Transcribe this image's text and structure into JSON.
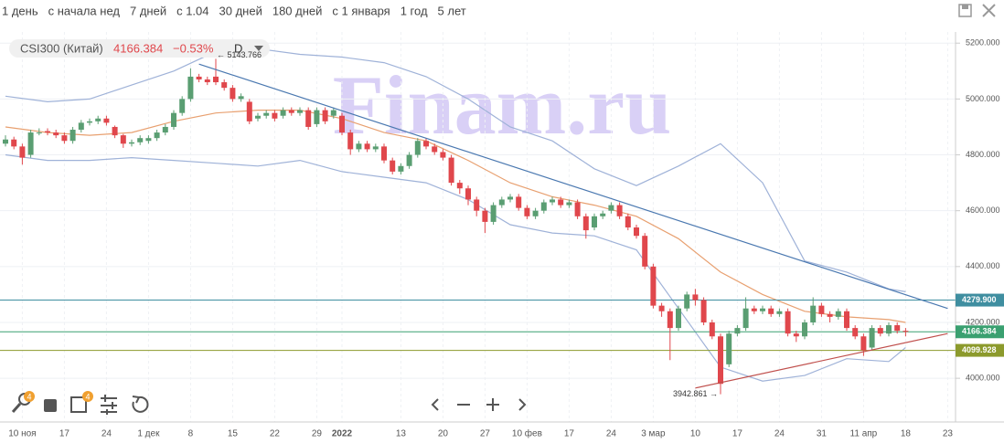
{
  "toolbar": {
    "periods": [
      "1 день",
      "с начала нед",
      "7 дней",
      "с 1.04",
      "30 дней",
      "180 дней",
      "с 1 января",
      "1 год",
      "5 лет"
    ],
    "badges": [
      "4",
      "4"
    ]
  },
  "legend": {
    "symbol": "CSI300 (Китай)",
    "price": "4166.384",
    "change": "−0.53%",
    "interval": "D"
  },
  "watermark": "Finam.ru",
  "chart_data": {
    "type": "candlestick",
    "categories": [
      null,
      null,
      "10 ноя",
      null,
      null,
      null,
      null,
      "17",
      null,
      null,
      null,
      null,
      "24",
      null,
      null,
      null,
      null,
      "1 дек",
      null,
      null,
      null,
      null,
      "8",
      null,
      null,
      null,
      null,
      "15",
      null,
      null,
      null,
      null,
      "22",
      null,
      null,
      null,
      null,
      "29",
      null,
      null,
      "2022",
      null,
      null,
      null,
      null,
      null,
      null,
      "13",
      null,
      null,
      null,
      null,
      "20",
      null,
      null,
      null,
      null,
      "27",
      null,
      null,
      null,
      null,
      "10 фев",
      null,
      null,
      null,
      null,
      "17",
      null,
      null,
      null,
      null,
      "24",
      null,
      null,
      null,
      null,
      "3 мар",
      null,
      null,
      null,
      null,
      "10",
      null,
      null,
      null,
      null,
      "17",
      null,
      null,
      null,
      null,
      "24",
      null,
      null,
      null,
      null,
      "31",
      null,
      null,
      null,
      null,
      "11 апр",
      null,
      null,
      null,
      null,
      "18",
      null,
      null,
      null,
      null,
      "23"
    ],
    "open": [
      4840,
      4855,
      4830,
      4800,
      4880,
      4885,
      4880,
      4870,
      4850,
      4890,
      4915,
      4920,
      4930,
      4900,
      4870,
      4840,
      4845,
      4850,
      4860,
      4880,
      4900,
      4950,
      5000,
      5080,
      5070,
      5080,
      5060,
      5040,
      5000,
      4990,
      4930,
      4940,
      4950,
      4940,
      4960,
      4950,
      4960,
      4910,
      4960,
      4940,
      4940,
      4880,
      4820,
      4840,
      4820,
      4830,
      4780,
      4740,
      4760,
      4800,
      4850,
      4830,
      4810,
      4790,
      4700,
      4680,
      4640,
      4600,
      4560,
      4620,
      4640,
      4650,
      4610,
      4580,
      4600,
      4630,
      4640,
      4620,
      4630,
      4580,
      4540,
      4580,
      4600,
      4620,
      4580,
      4540,
      4510,
      4400,
      4260,
      4240,
      4180,
      4250,
      4300,
      4280,
      4200,
      4150,
      4050,
      4160,
      4180,
      4250,
      4240,
      4250,
      4230,
      4240,
      4160,
      4150,
      4200,
      4260,
      4230,
      4220,
      4240,
      4180,
      4150,
      4110,
      4180,
      4160,
      4190,
      4170,
      null,
      null,
      null,
      null,
      null
    ],
    "high": [
      4870,
      4865,
      4840,
      4890,
      4895,
      4895,
      4890,
      4880,
      4900,
      4925,
      4930,
      4940,
      4940,
      4905,
      4875,
      4855,
      4870,
      4870,
      4890,
      4910,
      4960,
      5010,
      5110,
      5090,
      5080,
      5143.766,
      5070,
      5050,
      5020,
      5000,
      4950,
      4960,
      4960,
      4970,
      4970,
      4970,
      4970,
      4970,
      4970,
      4970,
      4950,
      4890,
      4850,
      4850,
      4840,
      4840,
      4790,
      4770,
      4810,
      4860,
      4860,
      4840,
      4820,
      4800,
      4710,
      4690,
      4650,
      4610,
      4630,
      4650,
      4660,
      4660,
      4620,
      4610,
      4640,
      4650,
      4650,
      4640,
      4640,
      4590,
      4590,
      4600,
      4630,
      4630,
      4590,
      4550,
      4520,
      4410,
      4270,
      4250,
      4260,
      4310,
      4320,
      4290,
      4210,
      4160,
      4170,
      4190,
      4290,
      4260,
      4260,
      4260,
      4250,
      4250,
      4170,
      4210,
      4290,
      4270,
      4240,
      4250,
      4250,
      4190,
      4160,
      4190,
      4190,
      4200,
      4200,
      4180,
      null,
      null,
      null,
      null,
      null
    ],
    "low": [
      4830,
      4820,
      4765,
      4790,
      4870,
      4870,
      4860,
      4840,
      4840,
      4880,
      4905,
      4910,
      4905,
      4860,
      4825,
      4830,
      4835,
      4840,
      4850,
      4870,
      4890,
      4940,
      4990,
      5060,
      5050,
      5050,
      5030,
      4990,
      4990,
      4910,
      4920,
      4930,
      4920,
      4930,
      4940,
      4940,
      4890,
      4900,
      4910,
      4930,
      4870,
      4800,
      4810,
      4810,
      4810,
      4770,
      4730,
      4730,
      4750,
      4790,
      4820,
      4800,
      4780,
      4690,
      4660,
      4620,
      4580,
      4520,
      4550,
      4610,
      4630,
      4600,
      4570,
      4570,
      4590,
      4620,
      4610,
      4610,
      4570,
      4500,
      4530,
      4570,
      4590,
      4570,
      4530,
      4500,
      4390,
      4250,
      4220,
      4065,
      4170,
      4240,
      4260,
      4190,
      4140,
      3942.861,
      4040,
      4150,
      4170,
      4230,
      4230,
      4220,
      4220,
      4150,
      4130,
      4140,
      4190,
      4220,
      4200,
      4210,
      4170,
      4140,
      4080,
      4100,
      4150,
      4150,
      4160,
      4150,
      null,
      null,
      null,
      null,
      null
    ],
    "close": [
      4855,
      4830,
      4790,
      4880,
      4880,
      4880,
      4870,
      4850,
      4890,
      4915,
      4920,
      4930,
      4915,
      4870,
      4840,
      4845,
      4860,
      4860,
      4880,
      4900,
      4950,
      5000,
      5080,
      5070,
      5060,
      5060,
      5040,
      5000,
      5010,
      4920,
      4940,
      4950,
      4930,
      4960,
      4950,
      4960,
      4900,
      4960,
      4920,
      4960,
      4880,
      4820,
      4840,
      4820,
      4830,
      4780,
      4740,
      4760,
      4800,
      4850,
      4830,
      4810,
      4790,
      4700,
      4680,
      4640,
      4600,
      4560,
      4620,
      4640,
      4650,
      4610,
      4580,
      4600,
      4630,
      4640,
      4620,
      4630,
      4580,
      4530,
      4580,
      4590,
      4620,
      4580,
      4540,
      4510,
      4400,
      4260,
      4240,
      4180,
      4250,
      4300,
      4280,
      4200,
      4150,
      3980,
      4160,
      4180,
      4250,
      4240,
      4250,
      4230,
      4240,
      4160,
      4150,
      4200,
      4260,
      4230,
      4220,
      4240,
      4180,
      4150,
      4100,
      4180,
      4160,
      4190,
      4170,
      4166.384,
      null,
      null,
      null,
      null,
      null
    ],
    "up_color": "#5a9e72",
    "down_color": "#e0474c",
    "band_x": [
      0,
      5,
      10,
      15,
      20,
      25,
      30,
      35,
      40,
      45,
      50,
      55,
      60,
      65,
      70,
      75,
      80,
      85,
      90,
      95,
      100,
      105,
      107
    ],
    "bands": [
      {
        "color": "#9fb2d8",
        "values": [
          5010,
          4990,
          5000,
          5050,
          5100,
          5170,
          5180,
          5160,
          5150,
          5130,
          5080,
          5000,
          4900,
          4850,
          4750,
          4690,
          4760,
          4840,
          4700,
          4420,
          4380,
          4320,
          4310
        ]
      },
      {
        "color": "#e8a070",
        "values": [
          4900,
          4880,
          4870,
          4880,
          4920,
          4950,
          4960,
          4960,
          4930,
          4880,
          4850,
          4780,
          4700,
          4650,
          4620,
          4580,
          4500,
          4380,
          4300,
          4240,
          4220,
          4210,
          4200
        ]
      },
      {
        "color": "#9fb2d8",
        "values": [
          4800,
          4780,
          4780,
          4790,
          4780,
          4770,
          4760,
          4780,
          4740,
          4720,
          4700,
          4640,
          4550,
          4520,
          4510,
          4460,
          4250,
          4040,
          3990,
          4010,
          4070,
          4060,
          4110
        ]
      }
    ],
    "trendlines": [
      {
        "color": "#4a78b0",
        "x": [
          23,
          112
        ],
        "values": [
          5125,
          4250
        ]
      },
      {
        "color": "#c0504d",
        "x": [
          82,
          112
        ],
        "values": [
          3965,
          4160
        ]
      }
    ],
    "levels": [
      {
        "value": 4279.9,
        "label": "4279.900",
        "color": "#3f8ea0"
      },
      {
        "value": 4166.384,
        "label": "4166.384",
        "color": "#3aa070"
      },
      {
        "value": 4099.928,
        "label": "4099.928",
        "color": "#8c9a2c"
      }
    ],
    "annotations": [
      {
        "x": 25,
        "value": 5143.766,
        "text": "← 5143.766"
      },
      {
        "x": 85,
        "value": 3942.861,
        "text": "3942.861 →"
      }
    ],
    "ylim": [
      3850,
      5240
    ],
    "yticks": [
      {
        "value": 4000,
        "label": "4000.000"
      },
      {
        "value": 4200,
        "label": "4200.000"
      },
      {
        "value": 4400,
        "label": "4400.000"
      },
      {
        "value": 4600,
        "label": "4600.000"
      },
      {
        "value": 4800,
        "label": "4800.000"
      },
      {
        "value": 5000,
        "label": "5000.000"
      },
      {
        "value": 5200,
        "label": "5200.000"
      }
    ],
    "grid": true
  }
}
